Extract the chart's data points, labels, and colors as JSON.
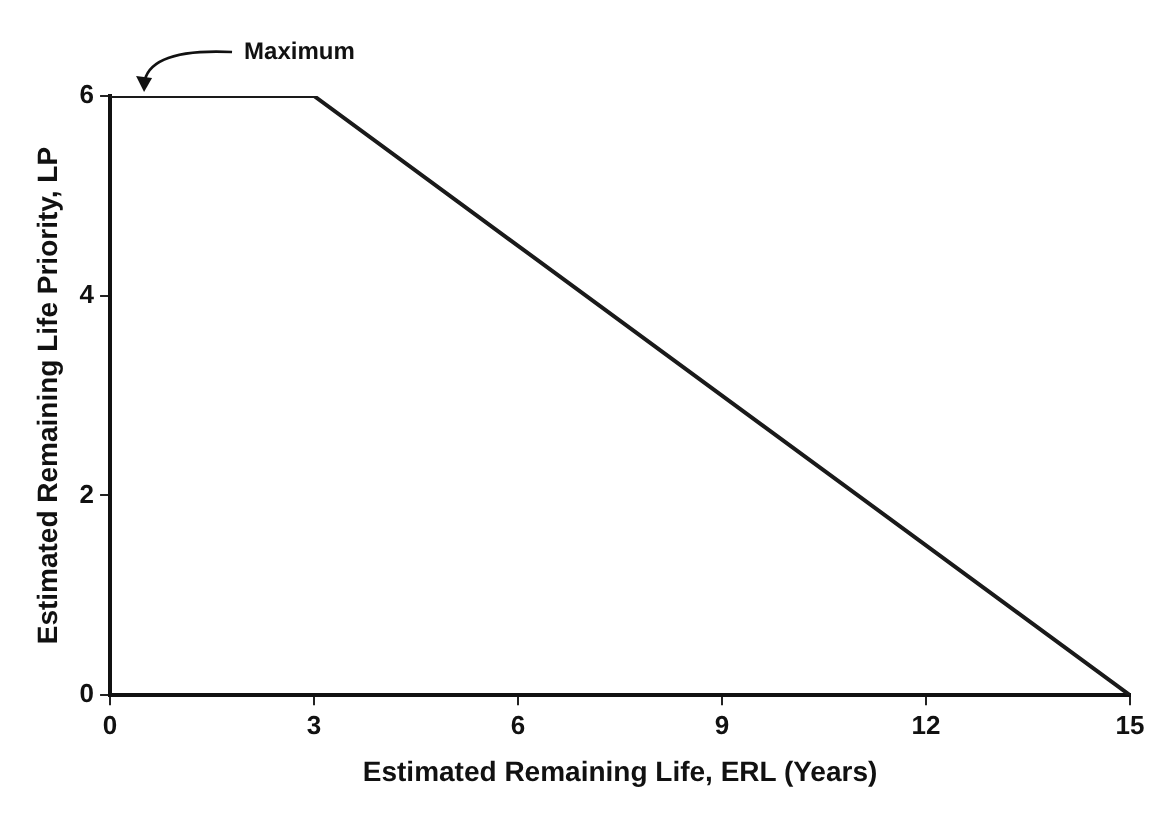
{
  "chart_data": {
    "type": "line",
    "xlabel": "Estimated Remaining Life, ERL (Years)",
    "ylabel": "Estimated Remaining Life Priority, LP",
    "x": [
      0,
      3,
      15
    ],
    "series": [
      {
        "color": "#1a1a1a",
        "values": [
          6,
          6,
          0
        ]
      }
    ],
    "xlim": [
      0,
      15
    ],
    "xticks": [
      0,
      3,
      6,
      9,
      12,
      15
    ],
    "ylim": [
      0,
      6
    ],
    "yticks": [
      0,
      2,
      4,
      6
    ],
    "grid": false,
    "legend": false,
    "marker": "none",
    "line_style": "solid",
    "annotations": [
      {
        "text": "Maximum",
        "x": 0.5,
        "y": 6
      }
    ]
  }
}
